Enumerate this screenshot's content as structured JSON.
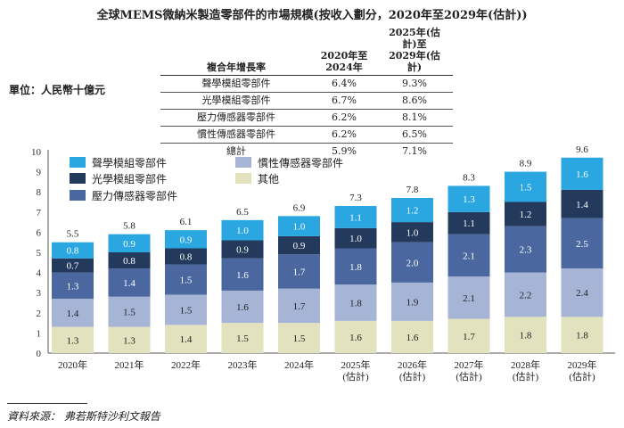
{
  "title": "全球MEMS微納米製造零部件的市場規模(按收入劃分，2020年至2029年(估計))",
  "unit_label": "單位：人民幣十億元",
  "cagr_table": {
    "headers": [
      "複合年增長率",
      "2020年至\n2024年",
      "2025年(估計)至\n2029年(估計)"
    ],
    "rows": [
      {
        "label": "聲學模組零部件",
        "v1": "6.4%",
        "v2": "9.3%"
      },
      {
        "label": "光學模組零部件",
        "v1": "6.7%",
        "v2": "8.6%"
      },
      {
        "label": "壓力傳感器零部件",
        "v1": "6.2%",
        "v2": "8.1%"
      },
      {
        "label": "慣性傳感器零部件",
        "v1": "6.2%",
        "v2": "6.5%"
      },
      {
        "label": "總計",
        "v1": "5.9%",
        "v2": "7.1%"
      }
    ]
  },
  "chart_data": {
    "type": "bar",
    "stacked": true,
    "categories": [
      "2020年",
      "2021年",
      "2022年",
      "2023年",
      "2024年",
      "2025年\n(估計)",
      "2026年\n(估計)",
      "2027年\n(估計)",
      "2028年\n(估計)",
      "2029年\n(估計)"
    ],
    "series": [
      {
        "name": "其他",
        "color": "#e3e2bf",
        "values": [
          1.3,
          1.3,
          1.4,
          1.5,
          1.5,
          1.6,
          1.6,
          1.7,
          1.8,
          1.8
        ]
      },
      {
        "name": "慣性傳感器零部件",
        "color": "#a6b4d6",
        "values": [
          1.4,
          1.5,
          1.5,
          1.6,
          1.7,
          1.8,
          1.9,
          2.1,
          2.2,
          2.4
        ]
      },
      {
        "name": "壓力傳感器零部件",
        "color": "#4a689f",
        "values": [
          1.3,
          1.4,
          1.5,
          1.6,
          1.7,
          1.8,
          2.0,
          2.1,
          2.3,
          2.5
        ]
      },
      {
        "name": "光學模組零部件",
        "color": "#233a5c",
        "values": [
          0.7,
          0.8,
          0.8,
          0.9,
          0.9,
          1.0,
          1.0,
          1.1,
          1.2,
          1.4
        ]
      },
      {
        "name": "聲學模組零部件",
        "color": "#2aa7e0",
        "values": [
          0.8,
          0.9,
          0.9,
          1.0,
          1.0,
          1.1,
          1.2,
          1.3,
          1.5,
          1.6
        ]
      }
    ],
    "totals": [
      5.5,
      5.8,
      6.1,
      6.5,
      6.9,
      7.3,
      7.8,
      8.3,
      8.9,
      9.6
    ],
    "legend": [
      {
        "name": "聲學模組零部件",
        "color": "#2aa7e0"
      },
      {
        "name": "慣性傳感器零部件",
        "color": "#a6b4d6"
      },
      {
        "name": "光學模組零部件",
        "color": "#233a5c"
      },
      {
        "name": "其他",
        "color": "#e3e2bf"
      },
      {
        "name": "壓力傳感器零部件",
        "color": "#4a689f"
      }
    ],
    "ylim": [
      0,
      10
    ],
    "yticks": [
      0,
      1,
      2,
      3,
      4,
      5,
      6,
      7,
      8,
      9,
      10
    ],
    "xlabel": "",
    "ylabel": ""
  },
  "source": "資料來源：  弗若斯特沙利文報告"
}
